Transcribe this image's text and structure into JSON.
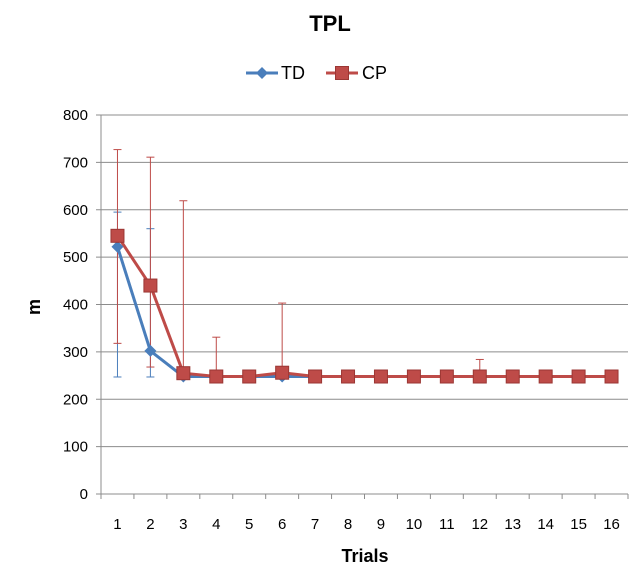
{
  "chart_data": {
    "type": "line",
    "title": "TPL",
    "xlabel": "Trials",
    "ylabel": "m",
    "categories": [
      "1",
      "2",
      "3",
      "4",
      "5",
      "6",
      "7",
      "8",
      "9",
      "10",
      "11",
      "12",
      "13",
      "14",
      "15",
      "16"
    ],
    "ylim": [
      0,
      800
    ],
    "yticks": [
      "0",
      "100",
      "200",
      "300",
      "400",
      "500",
      "600",
      "700",
      "800"
    ],
    "grid": true,
    "legend_position": "top",
    "series": [
      {
        "name": "TD",
        "color": "#4a7ebb",
        "marker": "diamond",
        "values": [
          522,
          302,
          248,
          248,
          248,
          248,
          248,
          248,
          248,
          248,
          248,
          248,
          248,
          248,
          248,
          248
        ],
        "error_lower": [
          247,
          247,
          248,
          248,
          248,
          248,
          248,
          248,
          248,
          248,
          248,
          248,
          248,
          248,
          248,
          248
        ],
        "error_upper": [
          595,
          560,
          248,
          248,
          248,
          248,
          248,
          248,
          248,
          248,
          248,
          248,
          248,
          248,
          248,
          248
        ]
      },
      {
        "name": "CP",
        "color": "#be4b48",
        "marker": "square",
        "values": [
          545,
          440,
          255,
          248,
          248,
          256,
          248,
          248,
          248,
          248,
          248,
          248,
          248,
          248,
          248,
          248
        ],
        "error_lower": [
          318,
          268,
          248,
          248,
          248,
          248,
          248,
          248,
          248,
          248,
          248,
          248,
          248,
          248,
          248,
          248
        ],
        "error_upper": [
          727,
          711,
          619,
          331,
          260,
          403,
          248,
          248,
          248,
          248,
          248,
          284,
          248,
          248,
          248,
          248
        ]
      }
    ]
  }
}
